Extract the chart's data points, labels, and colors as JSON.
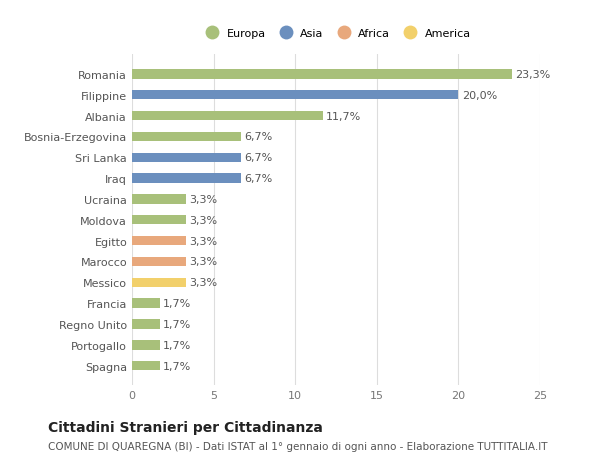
{
  "countries": [
    "Romania",
    "Filippine",
    "Albania",
    "Bosnia-Erzegovina",
    "Sri Lanka",
    "Iraq",
    "Ucraina",
    "Moldova",
    "Egitto",
    "Marocco",
    "Messico",
    "Francia",
    "Regno Unito",
    "Portogallo",
    "Spagna"
  ],
  "values": [
    23.3,
    20.0,
    11.7,
    6.7,
    6.7,
    6.7,
    3.3,
    3.3,
    3.3,
    3.3,
    3.3,
    1.7,
    1.7,
    1.7,
    1.7
  ],
  "labels": [
    "23,3%",
    "20,0%",
    "11,7%",
    "6,7%",
    "6,7%",
    "6,7%",
    "3,3%",
    "3,3%",
    "3,3%",
    "3,3%",
    "3,3%",
    "1,7%",
    "1,7%",
    "1,7%",
    "1,7%"
  ],
  "colors": [
    "#a8c07a",
    "#6b8fbe",
    "#a8c07a",
    "#a8c07a",
    "#6b8fbe",
    "#6b8fbe",
    "#a8c07a",
    "#a8c07a",
    "#e8a87c",
    "#e8a87c",
    "#f2d06b",
    "#a8c07a",
    "#a8c07a",
    "#a8c07a",
    "#a8c07a"
  ],
  "continent_colors": {
    "Europa": "#a8c07a",
    "Asia": "#6b8fbe",
    "Africa": "#e8a87c",
    "America": "#f2d06b"
  },
  "xlim": [
    0,
    25
  ],
  "xticks": [
    0,
    5,
    10,
    15,
    20,
    25
  ],
  "title": "Cittadini Stranieri per Cittadinanza",
  "subtitle": "COMUNE DI QUAREGNA (BI) - Dati ISTAT al 1° gennaio di ogni anno - Elaborazione TUTTITALIA.IT",
  "bg_color": "#ffffff",
  "grid_color": "#dddddd",
  "bar_height": 0.45,
  "label_fontsize": 8,
  "tick_fontsize": 8,
  "title_fontsize": 10,
  "subtitle_fontsize": 7.5
}
